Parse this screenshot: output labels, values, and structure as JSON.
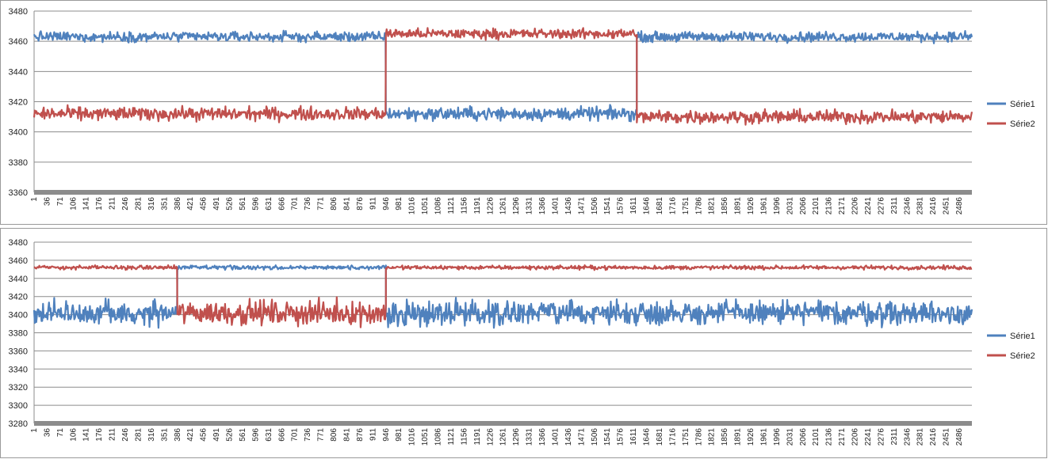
{
  "chart_data": [
    {
      "type": "line",
      "y_ticks": [
        "3480",
        "3460",
        "3440",
        "3420",
        "3400",
        "3380",
        "3360"
      ],
      "ylim": [
        3360,
        3480
      ],
      "x_ticks": [
        "1",
        "36",
        "71",
        "106",
        "141",
        "176",
        "211",
        "246",
        "281",
        "316",
        "351",
        "386",
        "421",
        "456",
        "491",
        "526",
        "561",
        "596",
        "631",
        "666",
        "701",
        "736",
        "771",
        "806",
        "841",
        "876",
        "911",
        "946",
        "981",
        "1016",
        "1051",
        "1086",
        "1121",
        "1156",
        "1191",
        "1226",
        "1261",
        "1296",
        "1331",
        "1366",
        "1401",
        "1436",
        "1471",
        "1506",
        "1541",
        "1576",
        "1611",
        "1646",
        "1681",
        "1716",
        "1751",
        "1786",
        "1821",
        "1856",
        "1891",
        "1926",
        "1961",
        "1996",
        "2031",
        "2066",
        "2101",
        "2136",
        "2171",
        "2206",
        "2241",
        "2276",
        "2311",
        "2346",
        "2381",
        "2416",
        "2451",
        "2486"
      ],
      "x_range": [
        1,
        2520
      ],
      "grid": true,
      "legend_position": "right",
      "series": [
        {
          "name": "Série1",
          "color": "#4f81bd",
          "segments": [
            {
              "x": [
                1,
                946
              ],
              "level": 3463,
              "noise": 3
            },
            {
              "x": [
                946,
                1620
              ],
              "level": 3412,
              "noise": 4
            },
            {
              "x": [
                1620,
                2520
              ],
              "level": 3463,
              "noise": 3
            }
          ]
        },
        {
          "name": "Série2",
          "color": "#c0504d",
          "segments": [
            {
              "x": [
                1,
                946
              ],
              "level": 3412,
              "noise": 4
            },
            {
              "x": [
                946,
                1620
              ],
              "level": 3465,
              "noise": 3
            },
            {
              "x": [
                1620,
                2520
              ],
              "level": 3410,
              "noise": 4
            }
          ]
        }
      ]
    },
    {
      "type": "line",
      "y_ticks": [
        "3480",
        "3460",
        "3440",
        "3420",
        "3400",
        "3380",
        "3360",
        "3340",
        "3320",
        "3300",
        "3280"
      ],
      "ylim": [
        3280,
        3480
      ],
      "x_ticks": [
        "1",
        "36",
        "71",
        "106",
        "141",
        "176",
        "211",
        "246",
        "281",
        "316",
        "351",
        "386",
        "421",
        "456",
        "491",
        "526",
        "561",
        "596",
        "631",
        "666",
        "701",
        "736",
        "771",
        "806",
        "841",
        "876",
        "911",
        "946",
        "981",
        "1016",
        "1051",
        "1086",
        "1121",
        "1156",
        "1191",
        "1226",
        "1261",
        "1296",
        "1331",
        "1366",
        "1401",
        "1436",
        "1471",
        "1506",
        "1541",
        "1576",
        "1611",
        "1646",
        "1681",
        "1716",
        "1751",
        "1786",
        "1821",
        "1856",
        "1891",
        "1926",
        "1961",
        "1996",
        "2031",
        "2066",
        "2101",
        "2136",
        "2171",
        "2206",
        "2241",
        "2276",
        "2311",
        "2346",
        "2381",
        "2416",
        "2451",
        "2486"
      ],
      "x_range": [
        1,
        2520
      ],
      "grid": true,
      "legend_position": "right",
      "series": [
        {
          "name": "Série1",
          "color": "#4f81bd",
          "segments": [
            {
              "x": [
                1,
                386
              ],
              "level": 3402,
              "noise": 12
            },
            {
              "x": [
                386,
                946
              ],
              "level": 3452,
              "noise": 2
            },
            {
              "x": [
                946,
                2520
              ],
              "level": 3402,
              "noise": 12
            }
          ]
        },
        {
          "name": "Série2",
          "color": "#c0504d",
          "segments": [
            {
              "x": [
                1,
                386
              ],
              "level": 3452,
              "noise": 2
            },
            {
              "x": [
                386,
                946
              ],
              "level": 3402,
              "noise": 12
            },
            {
              "x": [
                946,
                2520
              ],
              "level": 3452,
              "noise": 2
            }
          ]
        }
      ]
    }
  ]
}
